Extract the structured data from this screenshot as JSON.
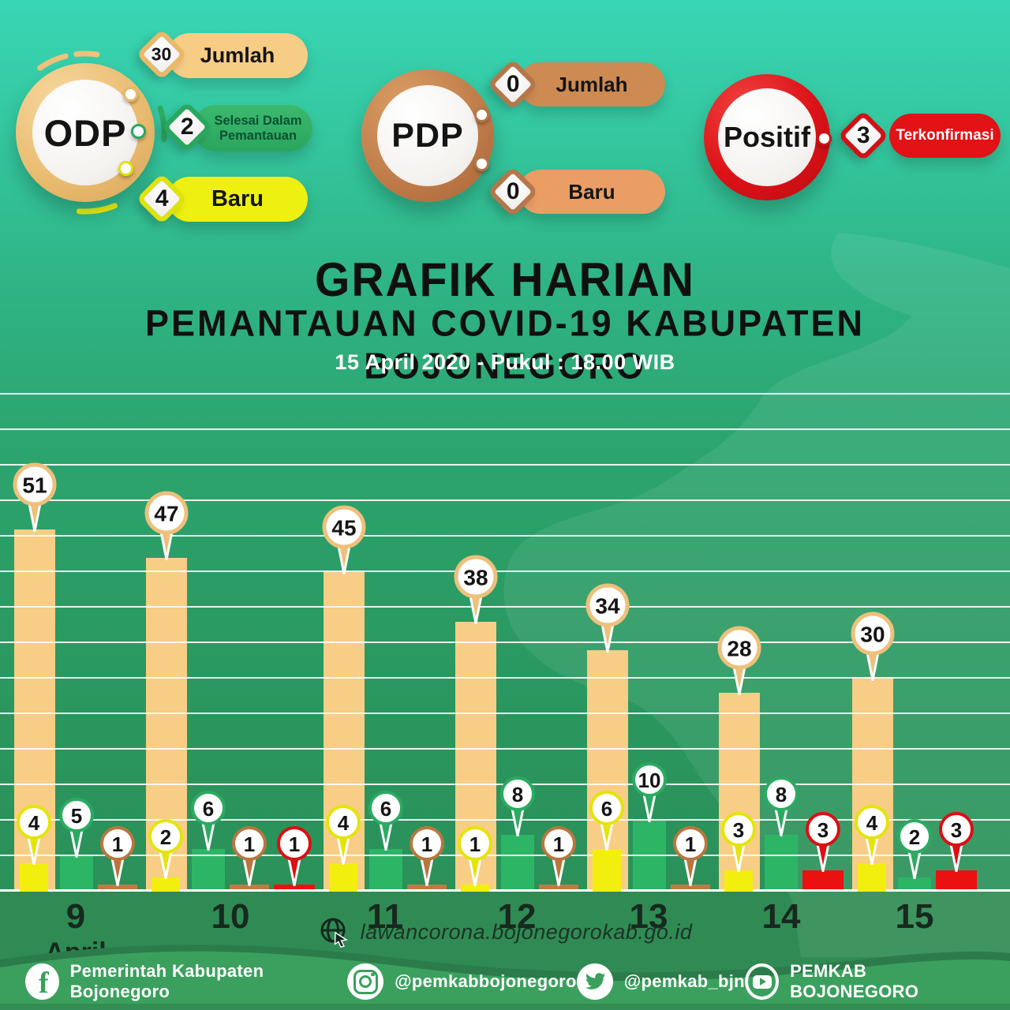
{
  "header": {
    "odp": {
      "label": "ODP",
      "items": [
        {
          "value": "30",
          "label": "Jumlah",
          "color": "#f7cc85"
        },
        {
          "value": "2",
          "label": "Selesai Dalam Pemantauan",
          "color": "#2fae63"
        },
        {
          "value": "4",
          "label": "Baru",
          "color": "#eef011"
        }
      ]
    },
    "pdp": {
      "label": "PDP",
      "items": [
        {
          "value": "0",
          "label": "Jumlah",
          "color": "#cd8a52"
        },
        {
          "value": "0",
          "label": "Baru",
          "color": "#ea9d65"
        }
      ]
    },
    "positif": {
      "label": "Positif",
      "items": [
        {
          "value": "3",
          "label": "Terkonfirmasi",
          "color": "#e21217"
        }
      ]
    }
  },
  "title": {
    "line1": "GRAFIK HARIAN",
    "line2": "PEMANTAUAN COVID-19 KABUPATEN BOJONEGORO",
    "line3": "15 April 2020 - Pukul : 18.00 WIB"
  },
  "chart_data": {
    "type": "bar",
    "categories": [
      "9",
      "10",
      "11",
      "12",
      "13",
      "14",
      "15"
    ],
    "month": "April",
    "series": [
      {
        "name": "odp_jumlah",
        "color": "#f8cd85",
        "pin_ring": "#edc07b",
        "values": [
          51,
          47,
          45,
          38,
          34,
          28,
          30
        ]
      },
      {
        "name": "odp_baru",
        "color": "#f2ef0e",
        "pin_ring": "#e4e40b",
        "values": [
          4,
          2,
          4,
          1,
          6,
          3,
          4
        ]
      },
      {
        "name": "odp_selesai_pemantauan",
        "color": "#2db566",
        "pin_ring": "#2bab61",
        "values": [
          5,
          6,
          6,
          8,
          10,
          8,
          2
        ]
      },
      {
        "name": "pdp",
        "color": "#c17a43",
        "pin_ring": "#b9763f",
        "values": [
          1,
          1,
          1,
          1,
          1,
          null,
          null
        ]
      },
      {
        "name": "positif",
        "color": "#ec1111",
        "pin_ring": "#da1014",
        "values": [
          null,
          1,
          null,
          null,
          null,
          3,
          3
        ]
      }
    ],
    "ylim": [
      0,
      70
    ],
    "gridline_step": 5,
    "grid": "on",
    "legend": "none",
    "value_labels": "pin markers above every bar"
  },
  "footer": {
    "website": "lawancorona.bojonegorokab.go.id",
    "social": [
      {
        "network": "facebook",
        "label": "Pemerintah Kabupaten Bojonegoro"
      },
      {
        "network": "instagram",
        "label": "@pemkabbojonegoro"
      },
      {
        "network": "twitter",
        "label": "@pemkab_bjn"
      },
      {
        "network": "youtube",
        "label": "PEMKAB BOJONEGORO"
      }
    ]
  },
  "colors": {
    "background_top": "#39d6b5",
    "background_bottom": "#2a8f56",
    "bottom_band": "#2f8b53",
    "footer_band": "#3ba05d",
    "footer_band_shadow": "#2b7c4a",
    "gridline": "#f4fcf8",
    "title_text": "#101010",
    "subtitle_text": "#ffffff"
  }
}
